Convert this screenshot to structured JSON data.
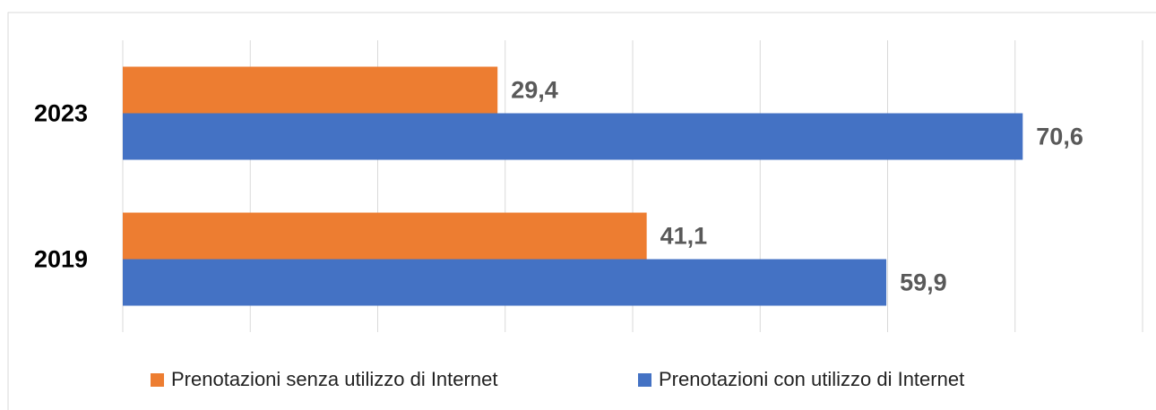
{
  "chart_data": {
    "type": "hbar",
    "categories": [
      "2023",
      "2019"
    ],
    "series": [
      {
        "name": "Prenotazioni senza utilizzo di Internet",
        "color": "#ed7d31",
        "values": [
          29.4,
          41.1
        ],
        "value_labels": [
          "29,4",
          "41,1"
        ]
      },
      {
        "name": "Prenotazioni con utilizzo di Internet",
        "color": "#4472c4",
        "values": [
          70.6,
          59.9
        ],
        "value_labels": [
          "70,6",
          "59,9"
        ]
      }
    ],
    "xlim": [
      0,
      80
    ],
    "xticks": [
      0,
      10,
      20,
      30,
      40,
      50,
      60,
      70,
      80
    ],
    "grid": true,
    "legend": "bottom"
  }
}
